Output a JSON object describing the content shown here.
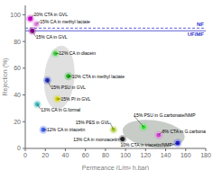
{
  "chart_data": {
    "type": "scatter",
    "xlabel": "Permeance (L/m² h.bar)",
    "ylabel": "Rejection (%)",
    "xlim": [
      0,
      180
    ],
    "ylim": [
      0,
      107
    ],
    "xticks": [
      0,
      20,
      40,
      60,
      80,
      100,
      120,
      140,
      160,
      180
    ],
    "yticks": [
      0,
      20,
      40,
      60,
      80,
      100
    ],
    "grid": false,
    "x": [
      5,
      11,
      7,
      22,
      30,
      43,
      32,
      12,
      18,
      88,
      97,
      118,
      133,
      152
    ],
    "values": [
      97,
      93,
      88,
      51,
      71,
      54,
      37,
      33,
      14,
      14,
      7,
      16,
      10,
      4
    ],
    "colors": [
      "#cc00cc",
      "#dd88dd",
      "#880088",
      "#2233bb",
      "#44cc44",
      "#22aa22",
      "#cccc00",
      "#44bbbb",
      "#4466ee",
      "#aacc33",
      "#222222",
      "#33dd33",
      "#cc44cc",
      "#2222cc"
    ],
    "annotations": [
      {
        "text": "20% CTA in GVL",
        "x": 5,
        "y": 97
      },
      {
        "text": "15% CA in methyl lactate",
        "x": 11,
        "y": 93
      },
      {
        "text": "15% CA in GVL",
        "x": 7,
        "y": 88
      },
      {
        "text": "15% PSU in GVL",
        "x": 22,
        "y": 51
      },
      {
        "text": "12% CA in diacein",
        "x": 30,
        "y": 71
      },
      {
        "text": "10% CTA in methyl lactate",
        "x": 43,
        "y": 54
      },
      {
        "text": "15% PI in GVL",
        "x": 32,
        "y": 37
      },
      {
        "text": "13% CA in G.formal",
        "x": 12,
        "y": 33
      },
      {
        "text": "12% CA in triacetin",
        "x": 18,
        "y": 14
      },
      {
        "text": "15% PES in GVL",
        "x": 88,
        "y": 14
      },
      {
        "text": "13% CA in monoacetin",
        "x": 97,
        "y": 7
      },
      {
        "text": "15% PSU in G.carbonate/NMP",
        "x": 118,
        "y": 16
      },
      {
        "text": "8% CTA in G.carbonate/NMP",
        "x": 133,
        "y": 10
      },
      {
        "text": "10% CTA in triacetin/NMP",
        "x": 152,
        "y": 4
      }
    ],
    "reference_lines": [
      {
        "y": 90,
        "label": "NF",
        "color": "#3333cc",
        "line_style": "dashed"
      },
      {
        "y": 88,
        "label": "UF/MF",
        "color": "#3333cc",
        "line_style": "solid"
      }
    ],
    "ellipses": [
      {
        "cx": 34,
        "cy": 53,
        "width": 30,
        "height": 48,
        "angle": -8,
        "color": "#999999"
      },
      {
        "cx": 128,
        "cy": 11,
        "width": 62,
        "height": 20,
        "angle": -5,
        "color": "#445544"
      }
    ]
  }
}
